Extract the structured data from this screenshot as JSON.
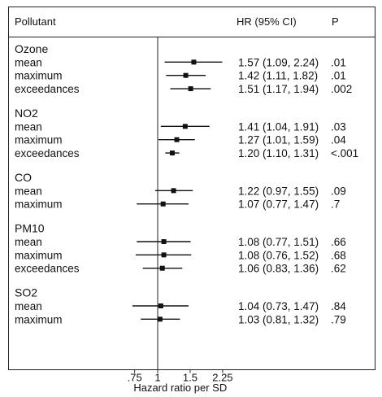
{
  "header": {
    "col1": "Pollutant",
    "col2": "HR (95% CI)",
    "col3": "P"
  },
  "chart_data": {
    "type": "forest",
    "title": "",
    "xlabel": "Hazard ratio per SD",
    "x_scale": "log",
    "xlim": [
      0.5,
      2.6
    ],
    "ticks": [
      ".75",
      "1",
      "1.5",
      "2.25"
    ],
    "tick_values": [
      0.75,
      1,
      1.5,
      2.25
    ],
    "reference_line": 1,
    "groups": [
      {
        "name": "Ozone",
        "rows": [
          {
            "label": "mean",
            "hr": 1.57,
            "lo": 1.09,
            "hi": 2.24,
            "text": "1.57 (1.09, 2.24)",
            "p": ".01"
          },
          {
            "label": "maximum",
            "hr": 1.42,
            "lo": 1.11,
            "hi": 1.82,
            "text": "1.42 (1.11, 1.82)",
            "p": ".01"
          },
          {
            "label": "exceedances",
            "hr": 1.51,
            "lo": 1.17,
            "hi": 1.94,
            "text": "1.51 (1.17, 1.94)",
            "p": ".002"
          }
        ]
      },
      {
        "name": "NO2",
        "rows": [
          {
            "label": "mean",
            "hr": 1.41,
            "lo": 1.04,
            "hi": 1.91,
            "text": "1.41 (1.04, 1.91)",
            "p": ".03"
          },
          {
            "label": "maximum",
            "hr": 1.27,
            "lo": 1.01,
            "hi": 1.59,
            "text": "1.27 (1.01, 1.59)",
            "p": ".04"
          },
          {
            "label": "exceedances",
            "hr": 1.2,
            "lo": 1.1,
            "hi": 1.31,
            "text": "1.20 (1.10, 1.31)",
            "p": "<.001"
          }
        ]
      },
      {
        "name": "CO",
        "rows": [
          {
            "label": "mean",
            "hr": 1.22,
            "lo": 0.97,
            "hi": 1.55,
            "text": "1.22 (0.97, 1.55)",
            "p": ".09"
          },
          {
            "label": "maximum",
            "hr": 1.07,
            "lo": 0.77,
            "hi": 1.47,
            "text": "1.07 (0.77, 1.47)",
            "p": ".7"
          }
        ]
      },
      {
        "name": "PM10",
        "rows": [
          {
            "label": "mean",
            "hr": 1.08,
            "lo": 0.77,
            "hi": 1.51,
            "text": "1.08 (0.77, 1.51)",
            "p": ".66"
          },
          {
            "label": "maximum",
            "hr": 1.08,
            "lo": 0.76,
            "hi": 1.52,
            "text": "1.08 (0.76, 1.52)",
            "p": ".68"
          },
          {
            "label": "exceedances",
            "hr": 1.06,
            "lo": 0.83,
            "hi": 1.36,
            "text": "1.06 (0.83, 1.36)",
            "p": ".62"
          }
        ]
      },
      {
        "name": "SO2",
        "rows": [
          {
            "label": "mean",
            "hr": 1.04,
            "lo": 0.73,
            "hi": 1.47,
            "text": "1.04 (0.73, 1.47)",
            "p": ".84"
          },
          {
            "label": "maximum",
            "hr": 1.03,
            "lo": 0.81,
            "hi": 1.32,
            "text": "1.03 (0.81, 1.32)",
            "p": ".79"
          }
        ]
      }
    ]
  }
}
